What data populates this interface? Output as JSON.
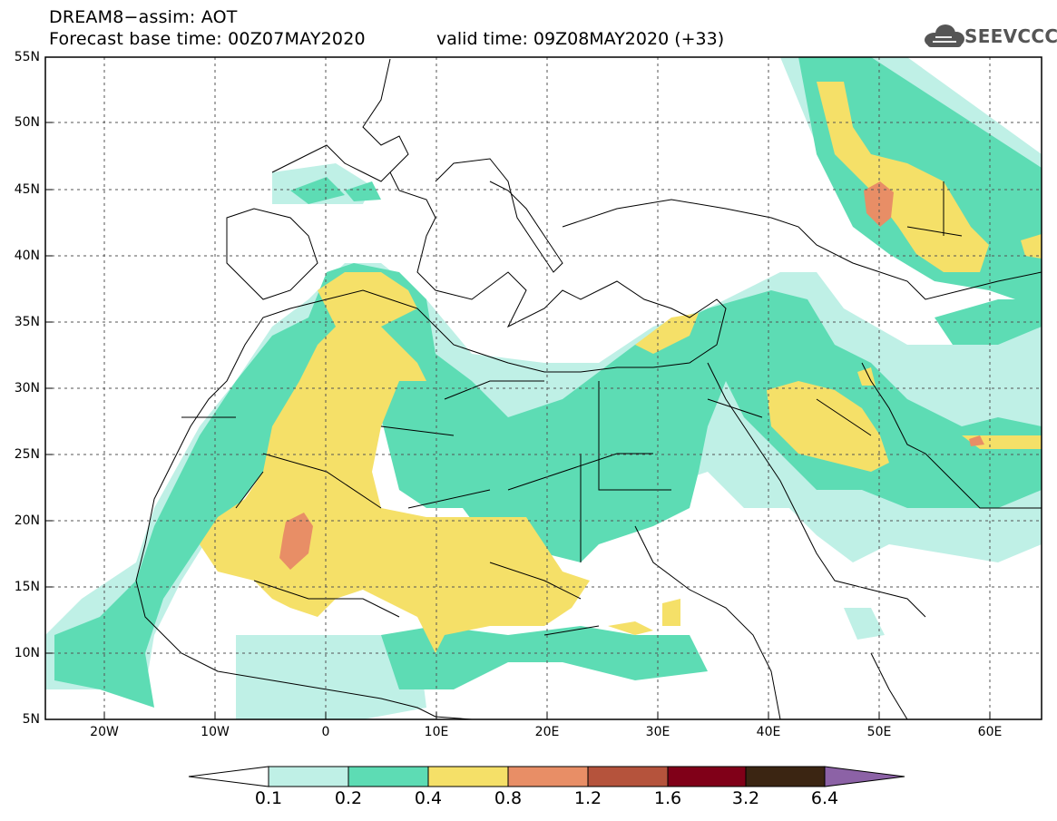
{
  "header": {
    "line1": "DREAM8−assim: AOT",
    "line2": "Forecast base time: 00Z07MAY2020",
    "valid": "valid time: 09Z08MAY2020 (+33)"
  },
  "logo": {
    "text": "SEEVCCC",
    "icon": "cloud-icon"
  },
  "axes": {
    "y_ticks": [
      "55N",
      "50N",
      "45N",
      "40N",
      "35N",
      "30N",
      "25N",
      "20N",
      "15N",
      "10N",
      "5N"
    ],
    "x_ticks": [
      "20W",
      "10W",
      "0",
      "10E",
      "20E",
      "30E",
      "40E",
      "50E",
      "60E"
    ]
  },
  "colorbar": {
    "labels": [
      "0.1",
      "0.2",
      "0.4",
      "0.8",
      "1.2",
      "1.6",
      "3.2",
      "6.4"
    ],
    "colors": [
      "#bff0e6",
      "#5ddcb4",
      "#f5e068",
      "#e88e66",
      "#b5533c",
      "#800018",
      "#3b2512",
      "#8c62a6"
    ]
  }
}
